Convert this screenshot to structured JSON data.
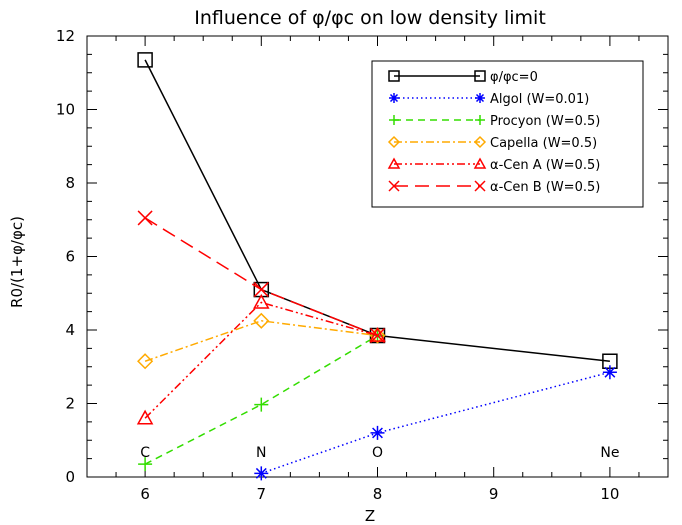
{
  "chart_data": {
    "type": "line",
    "title": "Influence of φ/φc on low density limit",
    "xlabel": "Z",
    "ylabel": "R0/(1+φ/φc)",
    "xlim": [
      5.5,
      10.5
    ],
    "ylim": [
      0,
      12
    ],
    "xticks": [
      6,
      7,
      8,
      9,
      10
    ],
    "yticks": [
      0,
      2,
      4,
      6,
      8,
      10,
      12
    ],
    "legend_position": "top-right",
    "element_labels": [
      {
        "x": 6,
        "label": "C"
      },
      {
        "x": 7,
        "label": "N"
      },
      {
        "x": 8,
        "label": "O"
      },
      {
        "x": 10,
        "label": "Ne"
      }
    ],
    "series": [
      {
        "name": "φ/φc=0",
        "color": "#000000",
        "marker": "square",
        "dash": "solid",
        "x": [
          6,
          7,
          8,
          10
        ],
        "y": [
          11.35,
          5.1,
          3.85,
          3.15
        ]
      },
      {
        "name": "Algol (W=0.01)",
        "color": "#0000ff",
        "marker": "asterisk",
        "dash": "dotted",
        "x": [
          7,
          8,
          10
        ],
        "y": [
          0.1,
          1.2,
          2.85
        ]
      },
      {
        "name": "Procyon (W=0.5)",
        "color": "#33dd00",
        "marker": "plus",
        "dash": "dashed",
        "x": [
          6,
          7,
          8
        ],
        "y": [
          0.35,
          1.97,
          3.85
        ]
      },
      {
        "name": "Capella (W=0.5)",
        "color": "#ffaa00",
        "marker": "diamond",
        "dash": "dashdot",
        "x": [
          6,
          7,
          8
        ],
        "y": [
          3.15,
          4.25,
          3.85
        ]
      },
      {
        "name": "α-Cen A (W=0.5)",
        "color": "#ff0000",
        "marker": "triangle",
        "dash": "dashdotdot",
        "x": [
          6,
          7,
          8
        ],
        "y": [
          1.6,
          4.75,
          3.85
        ]
      },
      {
        "name": "α-Cen B (W=0.5)",
        "color": "#ff0000",
        "marker": "x",
        "dash": "longdash",
        "x": [
          6,
          7,
          8
        ],
        "y": [
          7.05,
          5.1,
          3.85
        ]
      }
    ]
  }
}
